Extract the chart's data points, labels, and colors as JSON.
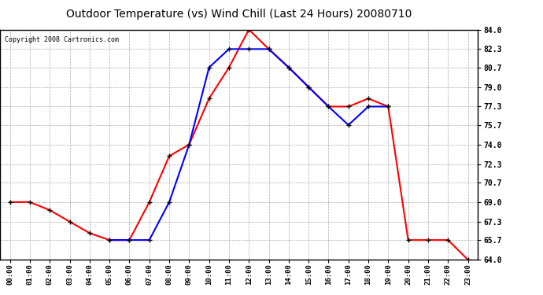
{
  "title": "Outdoor Temperature (vs) Wind Chill (Last 24 Hours) 20080710",
  "copyright": "Copyright 2008 Cartronics.com",
  "hours": [
    "00:00",
    "01:00",
    "02:00",
    "03:00",
    "04:00",
    "05:00",
    "06:00",
    "07:00",
    "08:00",
    "09:00",
    "10:00",
    "11:00",
    "12:00",
    "13:00",
    "14:00",
    "15:00",
    "16:00",
    "17:00",
    "18:00",
    "19:00",
    "20:00",
    "21:00",
    "22:00",
    "23:00"
  ],
  "temp": [
    69.0,
    69.0,
    68.3,
    67.3,
    66.3,
    65.7,
    65.7,
    69.0,
    73.0,
    74.0,
    78.0,
    80.7,
    84.0,
    82.3,
    80.7,
    79.0,
    77.3,
    77.3,
    78.0,
    77.3,
    65.7,
    65.7,
    65.7,
    64.0
  ],
  "windchill": [
    null,
    null,
    null,
    null,
    null,
    65.7,
    65.7,
    65.7,
    69.0,
    74.0,
    80.7,
    82.3,
    82.3,
    82.3,
    80.7,
    79.0,
    77.3,
    75.7,
    77.3,
    77.3,
    null,
    null,
    null,
    null
  ],
  "temp_color": "#ff0000",
  "windchill_color": "#0000ff",
  "marker": "+",
  "marker_color": "#000000",
  "bg_color": "#ffffff",
  "grid_color": "#aaaaaa",
  "ylim_min": 64.0,
  "ylim_max": 84.0,
  "yticks": [
    64.0,
    65.7,
    67.3,
    69.0,
    70.7,
    72.3,
    74.0,
    75.7,
    77.3,
    79.0,
    80.7,
    82.3,
    84.0
  ],
  "title_fontsize": 10,
  "copyright_fontsize": 6,
  "line_width": 1.5,
  "marker_size": 5
}
